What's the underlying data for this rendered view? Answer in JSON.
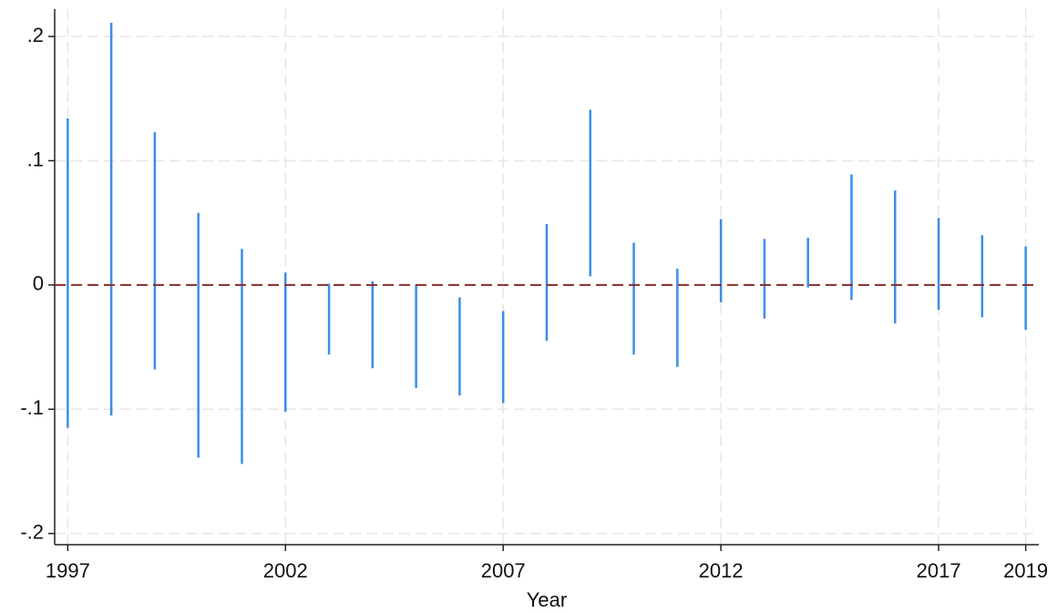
{
  "chart_data": {
    "type": "range",
    "x_label": "Year",
    "x": [
      1997,
      1998,
      1999,
      2000,
      2001,
      2002,
      2003,
      2004,
      2005,
      2006,
      2007,
      2008,
      2009,
      2010,
      2011,
      2012,
      2013,
      2014,
      2015,
      2016,
      2017,
      2018,
      2019
    ],
    "low": [
      -0.115,
      -0.105,
      -0.068,
      -0.139,
      -0.144,
      -0.102,
      -0.056,
      -0.067,
      -0.083,
      -0.089,
      -0.095,
      -0.045,
      0.007,
      -0.056,
      -0.066,
      -0.014,
      -0.027,
      -0.002,
      -0.012,
      -0.031,
      -0.02,
      -0.026,
      -0.036
    ],
    "high": [
      0.134,
      0.211,
      0.123,
      0.058,
      0.029,
      0.01,
      0.001,
      0.003,
      0.0,
      -0.01,
      -0.021,
      0.049,
      0.141,
      0.034,
      0.013,
      0.053,
      0.037,
      0.038,
      0.089,
      0.076,
      0.054,
      0.04,
      0.031
    ],
    "color": "#3a8ee6",
    "hline": 0,
    "hline_color": "#8b2a2a",
    "xlim": [
      1996.7,
      2019.3
    ],
    "xticks": [
      1997,
      2002,
      2007,
      2012,
      2017,
      2019
    ],
    "ylim": [
      -0.209,
      0.222
    ],
    "yticks": [
      {
        "value": -0.2,
        "label": "-.2"
      },
      {
        "value": -0.1,
        "label": "-.1"
      },
      0,
      {
        "value": 0.1,
        "label": ".1"
      },
      {
        "value": 0.2,
        "label": ".2"
      }
    ],
    "grid": true
  }
}
